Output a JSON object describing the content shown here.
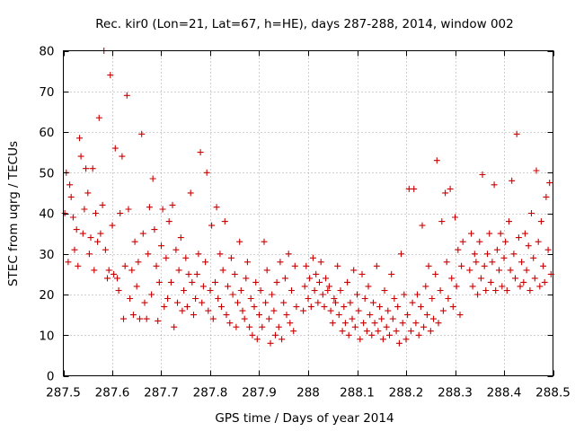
{
  "chart_data": {
    "type": "scatter",
    "title": "Rec. kir0 (Lon=21, Lat=67, h=HE), days 287-288, 2014, window 002",
    "xlabel": "GPS time / Days of year 2014",
    "ylabel": "STEC from uqrg / TECUs",
    "xlim": [
      287.5,
      288.5
    ],
    "ylim": [
      0,
      80
    ],
    "xticks": [
      287.5,
      287.6,
      287.7,
      287.8,
      287.9,
      288,
      288.1,
      288.2,
      288.3,
      288.4,
      288.5
    ],
    "xtick_labels": [
      "287.5",
      "287.6",
      "287.7",
      "287.8",
      "287.9",
      "288",
      "288.1",
      "288.2",
      "288.3",
      "288.4",
      "288.5"
    ],
    "yticks": [
      0,
      10,
      20,
      30,
      40,
      50,
      60,
      70,
      80
    ],
    "ytick_labels": [
      "0",
      "10",
      "20",
      "30",
      "40",
      "50",
      "60",
      "70",
      "80"
    ],
    "grid": true,
    "marker": "+",
    "color": "#cc0000",
    "series": [
      {
        "name": "STEC",
        "points": [
          [
            287.503,
            40
          ],
          [
            287.506,
            50
          ],
          [
            287.51,
            28
          ],
          [
            287.513,
            47
          ],
          [
            287.516,
            44
          ],
          [
            287.52,
            39
          ],
          [
            287.523,
            31
          ],
          [
            287.527,
            36
          ],
          [
            287.53,
            27
          ],
          [
            287.533,
            58.5
          ],
          [
            287.536,
            54
          ],
          [
            287.54,
            35
          ],
          [
            287.543,
            41
          ],
          [
            287.546,
            51
          ],
          [
            287.55,
            45
          ],
          [
            287.553,
            30
          ],
          [
            287.556,
            34
          ],
          [
            287.56,
            51
          ],
          [
            287.563,
            26
          ],
          [
            287.566,
            40
          ],
          [
            287.57,
            33
          ],
          [
            287.573,
            63.5
          ],
          [
            287.576,
            35
          ],
          [
            287.58,
            42
          ],
          [
            287.583,
            80
          ],
          [
            287.586,
            31
          ],
          [
            287.59,
            24
          ],
          [
            287.593,
            26
          ],
          [
            287.596,
            74
          ],
          [
            287.6,
            37
          ],
          [
            287.603,
            25
          ],
          [
            287.606,
            56
          ],
          [
            287.61,
            24
          ],
          [
            287.613,
            21
          ],
          [
            287.616,
            40
          ],
          [
            287.62,
            54
          ],
          [
            287.623,
            14
          ],
          [
            287.626,
            27
          ],
          [
            287.63,
            69
          ],
          [
            287.633,
            41
          ],
          [
            287.636,
            19
          ],
          [
            287.64,
            26
          ],
          [
            287.643,
            15
          ],
          [
            287.646,
            33
          ],
          [
            287.65,
            22
          ],
          [
            287.653,
            28
          ],
          [
            287.656,
            14
          ],
          [
            287.66,
            59.5
          ],
          [
            287.663,
            35
          ],
          [
            287.666,
            18
          ],
          [
            287.67,
            14
          ],
          [
            287.673,
            30
          ],
          [
            287.676,
            41.5
          ],
          [
            287.68,
            20
          ],
          [
            287.683,
            48.5
          ],
          [
            287.686,
            36
          ],
          [
            287.69,
            27
          ],
          [
            287.693,
            13.5
          ],
          [
            287.696,
            23
          ],
          [
            287.7,
            32
          ],
          [
            287.703,
            41
          ],
          [
            287.706,
            17
          ],
          [
            287.71,
            29
          ],
          [
            287.713,
            19
          ],
          [
            287.716,
            38
          ],
          [
            287.72,
            23
          ],
          [
            287.723,
            42
          ],
          [
            287.726,
            12
          ],
          [
            287.73,
            31
          ],
          [
            287.733,
            18
          ],
          [
            287.736,
            26
          ],
          [
            287.74,
            34
          ],
          [
            287.743,
            16
          ],
          [
            287.746,
            21
          ],
          [
            287.75,
            29
          ],
          [
            287.753,
            17
          ],
          [
            287.756,
            25
          ],
          [
            287.76,
            45
          ],
          [
            287.763,
            23
          ],
          [
            287.766,
            15
          ],
          [
            287.77,
            19
          ],
          [
            287.773,
            25
          ],
          [
            287.776,
            30
          ],
          [
            287.78,
            55
          ],
          [
            287.783,
            18
          ],
          [
            287.786,
            22
          ],
          [
            287.79,
            28
          ],
          [
            287.793,
            50
          ],
          [
            287.796,
            16
          ],
          [
            287.8,
            21
          ],
          [
            287.803,
            37
          ],
          [
            287.806,
            14
          ],
          [
            287.81,
            23
          ],
          [
            287.813,
            41.5
          ],
          [
            287.816,
            19
          ],
          [
            287.82,
            30
          ],
          [
            287.823,
            17
          ],
          [
            287.826,
            26
          ],
          [
            287.83,
            38
          ],
          [
            287.833,
            15
          ],
          [
            287.836,
            22
          ],
          [
            287.84,
            13
          ],
          [
            287.843,
            29
          ],
          [
            287.846,
            20
          ],
          [
            287.85,
            25
          ],
          [
            287.853,
            12
          ],
          [
            287.856,
            18
          ],
          [
            287.86,
            33
          ],
          [
            287.863,
            21
          ],
          [
            287.866,
            16
          ],
          [
            287.87,
            14
          ],
          [
            287.873,
            24
          ],
          [
            287.876,
            28
          ],
          [
            287.88,
            12
          ],
          [
            287.883,
            19
          ],
          [
            287.886,
            10
          ],
          [
            287.89,
            17
          ],
          [
            287.893,
            23
          ],
          [
            287.896,
            9
          ],
          [
            287.9,
            15
          ],
          [
            287.903,
            21
          ],
          [
            287.906,
            12
          ],
          [
            287.91,
            33
          ],
          [
            287.913,
            18
          ],
          [
            287.916,
            26
          ],
          [
            287.92,
            14
          ],
          [
            287.923,
            8
          ],
          [
            287.926,
            20
          ],
          [
            287.93,
            16
          ],
          [
            287.933,
            10
          ],
          [
            287.936,
            23
          ],
          [
            287.94,
            12
          ],
          [
            287.943,
            28
          ],
          [
            287.946,
            9
          ],
          [
            287.95,
            18
          ],
          [
            287.953,
            24
          ],
          [
            287.956,
            15
          ],
          [
            287.96,
            30
          ],
          [
            287.963,
            13
          ],
          [
            287.966,
            21
          ],
          [
            287.97,
            11
          ],
          [
            287.973,
            27
          ],
          [
            287.976,
            17
          ],
          [
            287.99,
            16
          ],
          [
            287.993,
            22
          ],
          [
            287.996,
            27
          ],
          [
            288.0,
            19
          ],
          [
            288.003,
            24
          ],
          [
            288.006,
            17
          ],
          [
            288.01,
            29
          ],
          [
            288.013,
            21
          ],
          [
            288.016,
            25
          ],
          [
            288.02,
            18
          ],
          [
            288.023,
            23
          ],
          [
            288.026,
            28
          ],
          [
            288.03,
            20
          ],
          [
            288.033,
            17
          ],
          [
            288.036,
            24
          ],
          [
            288.04,
            21
          ],
          [
            288.043,
            22
          ],
          [
            288.046,
            16
          ],
          [
            288.05,
            13
          ],
          [
            288.053,
            19
          ],
          [
            288.056,
            18
          ],
          [
            288.06,
            27
          ],
          [
            288.063,
            15
          ],
          [
            288.066,
            21
          ],
          [
            288.07,
            11
          ],
          [
            288.073,
            17
          ],
          [
            288.076,
            13
          ],
          [
            288.08,
            23
          ],
          [
            288.083,
            10
          ],
          [
            288.086,
            18
          ],
          [
            288.09,
            14
          ],
          [
            288.093,
            26
          ],
          [
            288.096,
            12
          ],
          [
            288.1,
            20
          ],
          [
            288.103,
            16
          ],
          [
            288.106,
            9
          ],
          [
            288.11,
            25
          ],
          [
            288.113,
            13
          ],
          [
            288.116,
            19
          ],
          [
            288.12,
            11
          ],
          [
            288.123,
            22
          ],
          [
            288.126,
            15
          ],
          [
            288.13,
            10
          ],
          [
            288.133,
            18
          ],
          [
            288.136,
            13
          ],
          [
            288.14,
            27
          ],
          [
            288.143,
            11
          ],
          [
            288.146,
            17
          ],
          [
            288.15,
            14
          ],
          [
            288.153,
            9
          ],
          [
            288.156,
            21
          ],
          [
            288.16,
            12
          ],
          [
            288.163,
            16
          ],
          [
            288.166,
            10
          ],
          [
            288.17,
            25
          ],
          [
            288.173,
            14
          ],
          [
            288.176,
            19
          ],
          [
            288.18,
            11
          ],
          [
            288.183,
            17
          ],
          [
            288.186,
            8
          ],
          [
            288.19,
            30
          ],
          [
            288.193,
            13
          ],
          [
            288.196,
            20
          ],
          [
            288.2,
            9
          ],
          [
            288.203,
            15
          ],
          [
            288.206,
            46
          ],
          [
            288.21,
            11
          ],
          [
            288.213,
            18
          ],
          [
            288.216,
            46
          ],
          [
            288.22,
            13
          ],
          [
            288.223,
            20
          ],
          [
            288.226,
            10
          ],
          [
            288.23,
            17
          ],
          [
            288.233,
            37
          ],
          [
            288.236,
            12
          ],
          [
            288.24,
            22
          ],
          [
            288.243,
            15
          ],
          [
            288.246,
            27
          ],
          [
            288.25,
            11
          ],
          [
            288.253,
            19
          ],
          [
            288.256,
            14
          ],
          [
            288.26,
            25
          ],
          [
            288.263,
            53
          ],
          [
            288.266,
            13
          ],
          [
            288.27,
            21
          ],
          [
            288.273,
            38
          ],
          [
            288.276,
            16
          ],
          [
            288.28,
            45
          ],
          [
            288.283,
            28
          ],
          [
            288.286,
            19
          ],
          [
            288.29,
            46
          ],
          [
            288.293,
            24
          ],
          [
            288.296,
            17
          ],
          [
            288.3,
            39
          ],
          [
            288.303,
            22
          ],
          [
            288.306,
            31
          ],
          [
            288.31,
            15
          ],
          [
            288.313,
            27
          ],
          [
            288.316,
            33
          ],
          [
            288.33,
            26
          ],
          [
            288.333,
            35
          ],
          [
            288.336,
            22
          ],
          [
            288.34,
            30
          ],
          [
            288.343,
            28
          ],
          [
            288.346,
            20
          ],
          [
            288.35,
            33
          ],
          [
            288.353,
            24
          ],
          [
            288.356,
            49.5
          ],
          [
            288.36,
            27
          ],
          [
            288.363,
            21
          ],
          [
            288.366,
            30
          ],
          [
            288.37,
            35
          ],
          [
            288.373,
            23
          ],
          [
            288.376,
            28
          ],
          [
            288.38,
            47
          ],
          [
            288.383,
            21
          ],
          [
            288.386,
            31
          ],
          [
            288.39,
            26
          ],
          [
            288.393,
            35
          ],
          [
            288.396,
            22
          ],
          [
            288.4,
            29
          ],
          [
            288.403,
            33
          ],
          [
            288.406,
            21
          ],
          [
            288.41,
            38
          ],
          [
            288.413,
            26
          ],
          [
            288.416,
            48
          ],
          [
            288.42,
            30
          ],
          [
            288.423,
            24
          ],
          [
            288.426,
            59.5
          ],
          [
            288.43,
            34
          ],
          [
            288.433,
            22
          ],
          [
            288.436,
            28
          ],
          [
            288.44,
            23
          ],
          [
            288.443,
            35
          ],
          [
            288.446,
            26
          ],
          [
            288.45,
            32
          ],
          [
            288.453,
            21
          ],
          [
            288.456,
            40
          ],
          [
            288.46,
            29
          ],
          [
            288.463,
            24
          ],
          [
            288.466,
            50.5
          ],
          [
            288.47,
            33
          ],
          [
            288.473,
            22
          ],
          [
            288.476,
            38
          ],
          [
            288.48,
            27
          ],
          [
            288.483,
            23
          ],
          [
            288.486,
            44
          ],
          [
            288.49,
            31
          ],
          [
            288.493,
            47.5
          ],
          [
            288.496,
            25
          ]
        ]
      }
    ]
  }
}
